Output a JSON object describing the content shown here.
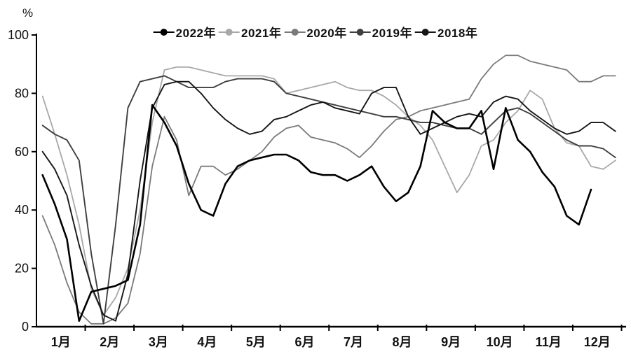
{
  "chart_data": {
    "type": "line",
    "title": "",
    "ylabel": "%",
    "ylim": [
      0,
      100
    ],
    "yticks": [
      0,
      20,
      40,
      60,
      80,
      100
    ],
    "categories": [
      "1月",
      "2月",
      "3月",
      "4月",
      "5月",
      "6月",
      "7月",
      "8月",
      "9月",
      "10月",
      "11月",
      "12月"
    ],
    "points_per_month": 4,
    "grid": false,
    "legend_position": "top",
    "series": [
      {
        "name": "2022年",
        "color": "#000000",
        "width": 2.6,
        "values": [
          52,
          42,
          30,
          2,
          12,
          13,
          14,
          16,
          35,
          76,
          70,
          62,
          49,
          40,
          38,
          49,
          55,
          57,
          58,
          59,
          59,
          57,
          53,
          52,
          52,
          50,
          52,
          55,
          48,
          43,
          46,
          55,
          74,
          70,
          68,
          68,
          74,
          54,
          75,
          64,
          60,
          53,
          48,
          38,
          35,
          47
        ]
      },
      {
        "name": "2021年",
        "color": "#a8a8a8",
        "width": 1.8,
        "values": [
          79,
          66,
          52,
          35,
          13,
          4,
          10,
          20,
          40,
          70,
          88,
          89,
          89,
          88,
          87,
          86,
          86,
          86,
          86,
          85,
          80,
          81,
          82,
          83,
          84,
          82,
          81,
          81,
          79,
          76,
          72,
          69,
          64,
          55,
          46,
          52,
          62,
          64,
          70,
          74,
          81,
          78,
          68,
          63,
          62,
          55,
          54,
          57
        ]
      },
      {
        "name": "2020年",
        "color": "#7a7a7a",
        "width": 1.8,
        "values": [
          38,
          28,
          15,
          5,
          1,
          1,
          3,
          8,
          25,
          55,
          72,
          64,
          45,
          55,
          55,
          52,
          54,
          57,
          60,
          65,
          68,
          69,
          65,
          64,
          63,
          61,
          58,
          62,
          67,
          71,
          72,
          74,
          75,
          76,
          77,
          78,
          85,
          90,
          93,
          93,
          91,
          90,
          89,
          88,
          84,
          84,
          86,
          86
        ]
      },
      {
        "name": "2019年",
        "color": "#3f3f3f",
        "width": 1.9,
        "values": [
          69,
          66,
          64,
          57,
          25,
          1,
          35,
          75,
          84,
          85,
          86,
          84,
          82,
          82,
          82,
          84,
          85,
          85,
          85,
          84,
          80,
          79,
          78,
          77,
          76,
          75,
          74,
          73,
          72,
          72,
          71,
          70,
          70,
          69,
          68,
          68,
          66,
          70,
          74,
          75,
          73,
          70,
          67,
          64,
          62,
          62,
          61,
          58
        ]
      },
      {
        "name": "2018年",
        "color": "#161616",
        "width": 1.9,
        "values": [
          60,
          54,
          45,
          28,
          14,
          4,
          2,
          18,
          50,
          75,
          83,
          84,
          84,
          80,
          75,
          71,
          68,
          66,
          67,
          71,
          72,
          74,
          76,
          77,
          75,
          74,
          73,
          80,
          82,
          82,
          72,
          66,
          68,
          70,
          72,
          73,
          72,
          77,
          79,
          78,
          74,
          71,
          68,
          66,
          67,
          70,
          70,
          67
        ]
      }
    ]
  }
}
